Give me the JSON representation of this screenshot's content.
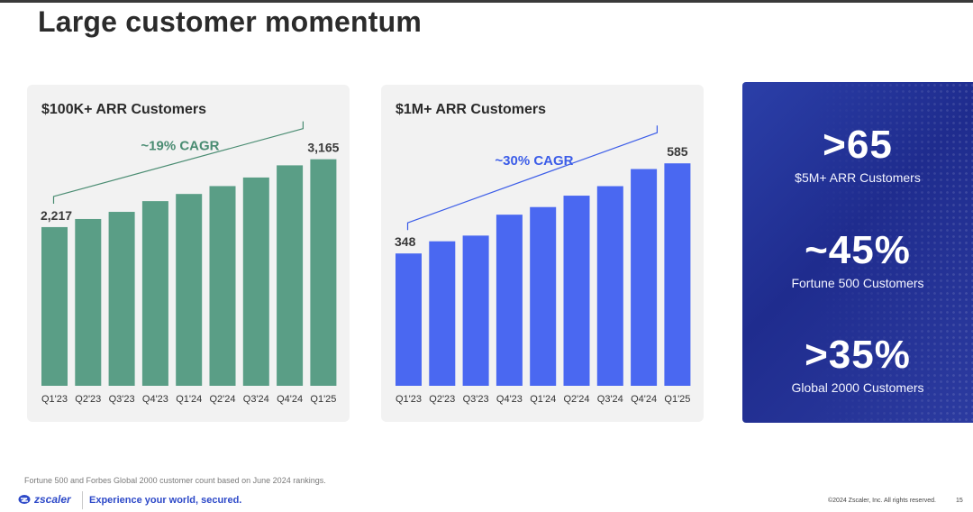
{
  "page": {
    "title": "Large customer momentum"
  },
  "chart_data": [
    {
      "type": "bar",
      "title": "$100K+ ARR Customers",
      "annotation": "~19% CAGR",
      "categories": [
        "Q1'23",
        "Q2'23",
        "Q3'23",
        "Q4'23",
        "Q1'24",
        "Q2'24",
        "Q3'24",
        "Q4'24",
        "Q1'25"
      ],
      "values": [
        2217,
        2330,
        2430,
        2580,
        2680,
        2790,
        2910,
        3080,
        3165
      ],
      "data_labels": [
        "2,217",
        "",
        "",
        "",
        "",
        "",
        "",
        "",
        "3,165"
      ],
      "color": "#5a9e86",
      "annotation_color": "#4a8c72",
      "label_color": "#3a3a3a",
      "xlabel": "",
      "ylabel": "",
      "ylim": [
        0,
        3400
      ],
      "grid": false
    },
    {
      "type": "bar",
      "title": "$1M+ ARR Customers",
      "annotation": "~30% CAGR",
      "categories": [
        "Q1'23",
        "Q2'23",
        "Q3'23",
        "Q4'23",
        "Q1'24",
        "Q2'24",
        "Q3'24",
        "Q4'24",
        "Q1'25"
      ],
      "values": [
        348,
        380,
        395,
        450,
        470,
        500,
        525,
        570,
        585
      ],
      "data_labels": [
        "348",
        "",
        "",
        "",
        "",
        "",
        "",
        "",
        "585"
      ],
      "color": "#4a68f1",
      "annotation_color": "#3c5de8",
      "label_color": "#3a3a3a",
      "xlabel": "",
      "ylabel": "",
      "ylim": [
        0,
        640
      ],
      "grid": false
    }
  ],
  "stats": {
    "items": [
      {
        "value": ">65",
        "label": "$5M+ ARR Customers"
      },
      {
        "value": "~45%",
        "label": "Fortune 500 Customers"
      },
      {
        "value": ">35%",
        "label": "Global 2000 Customers"
      }
    ]
  },
  "footer": {
    "footnote": "Fortune 500 and Forbes Global 2000 customer count based on June 2024 rankings.",
    "brand": "zscaler",
    "tagline": "Experience your world, secured.",
    "copyright": "©2024 Zscaler, Inc. All rights reserved.",
    "page_number": "15"
  },
  "colors": {
    "panel": "#2331a0",
    "brand": "#2d49c8"
  },
  "icons": [
    "zscaler-logo-icon"
  ]
}
